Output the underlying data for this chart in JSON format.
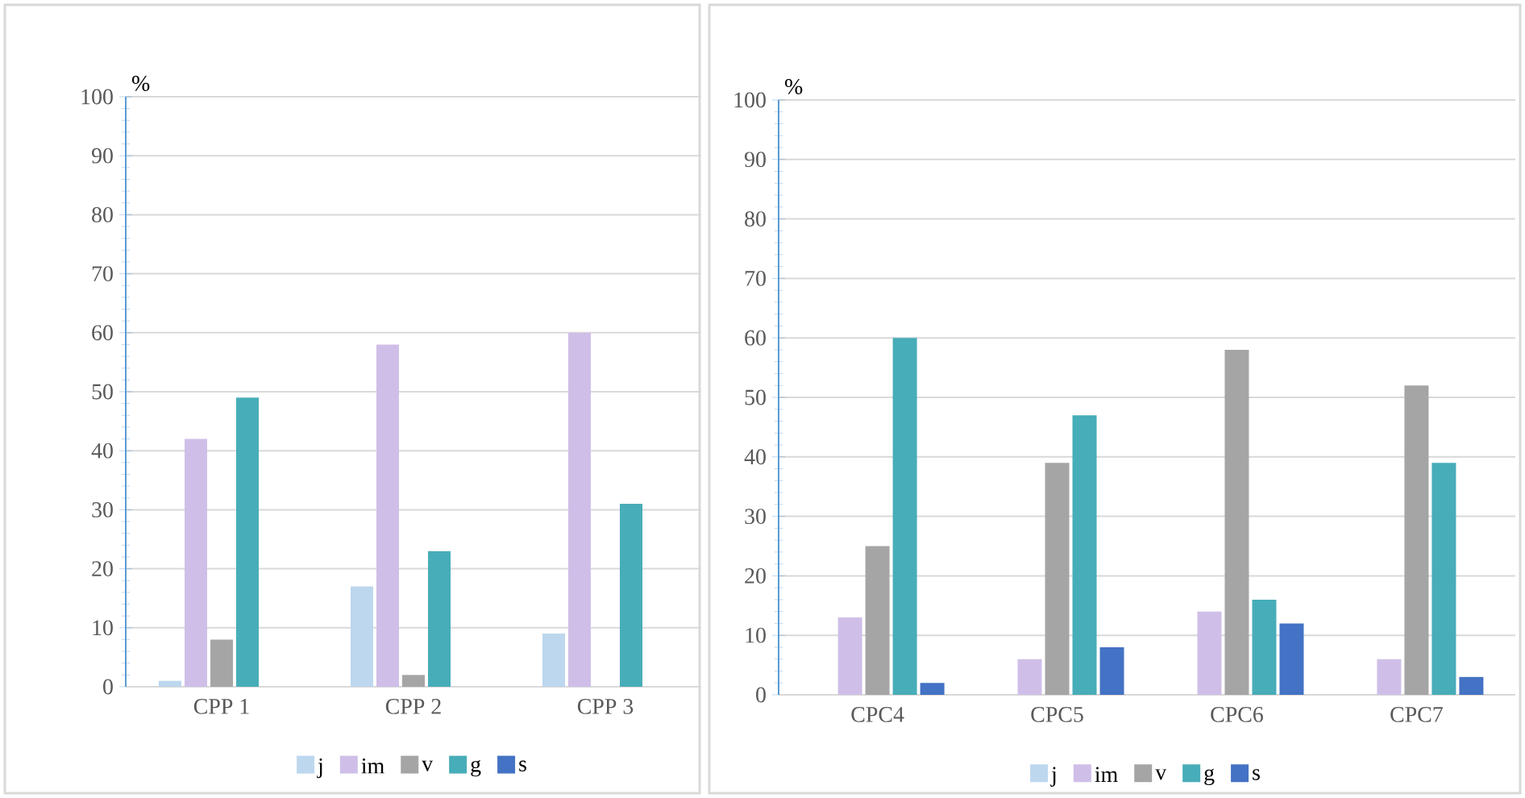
{
  "chart_data": [
    {
      "type": "bar",
      "ylabel": "%",
      "categories": [
        "CPP 1",
        "CPP 2",
        "CPP 3"
      ],
      "ylim": [
        0,
        100
      ],
      "yticks": [
        0,
        10,
        20,
        30,
        40,
        50,
        60,
        70,
        80,
        90,
        100
      ],
      "grid": "y",
      "legend": "bottom",
      "series": [
        {
          "name": "j",
          "color": "#bdd7ee",
          "values": [
            1,
            17,
            9
          ]
        },
        {
          "name": "im",
          "color": "#cfbfe8",
          "values": [
            42,
            58,
            60
          ]
        },
        {
          "name": "v",
          "color": "#a5a5a5",
          "values": [
            8,
            2,
            0
          ]
        },
        {
          "name": "g",
          "color": "#47adb8",
          "values": [
            49,
            23,
            31
          ]
        },
        {
          "name": "s",
          "color": "#4472c4",
          "values": [
            0,
            0,
            0
          ]
        }
      ]
    },
    {
      "type": "bar",
      "ylabel": "%",
      "categories": [
        "CPC4",
        "CPC5",
        "CPC6",
        "CPC7"
      ],
      "ylim": [
        0,
        100
      ],
      "yticks": [
        0,
        10,
        20,
        30,
        40,
        50,
        60,
        70,
        80,
        90,
        100
      ],
      "grid": "y",
      "legend": "bottom",
      "series": [
        {
          "name": "j",
          "color": "#bdd7ee",
          "values": [
            0,
            0,
            0,
            0
          ]
        },
        {
          "name": "im",
          "color": "#cfbfe8",
          "values": [
            13,
            6,
            14,
            6
          ]
        },
        {
          "name": "v",
          "color": "#a5a5a5",
          "values": [
            25,
            39,
            58,
            52
          ]
        },
        {
          "name": "g",
          "color": "#47adb8",
          "values": [
            60,
            47,
            16,
            39
          ]
        },
        {
          "name": "s",
          "color": "#4472c4",
          "values": [
            2,
            8,
            12,
            3
          ]
        }
      ]
    }
  ]
}
